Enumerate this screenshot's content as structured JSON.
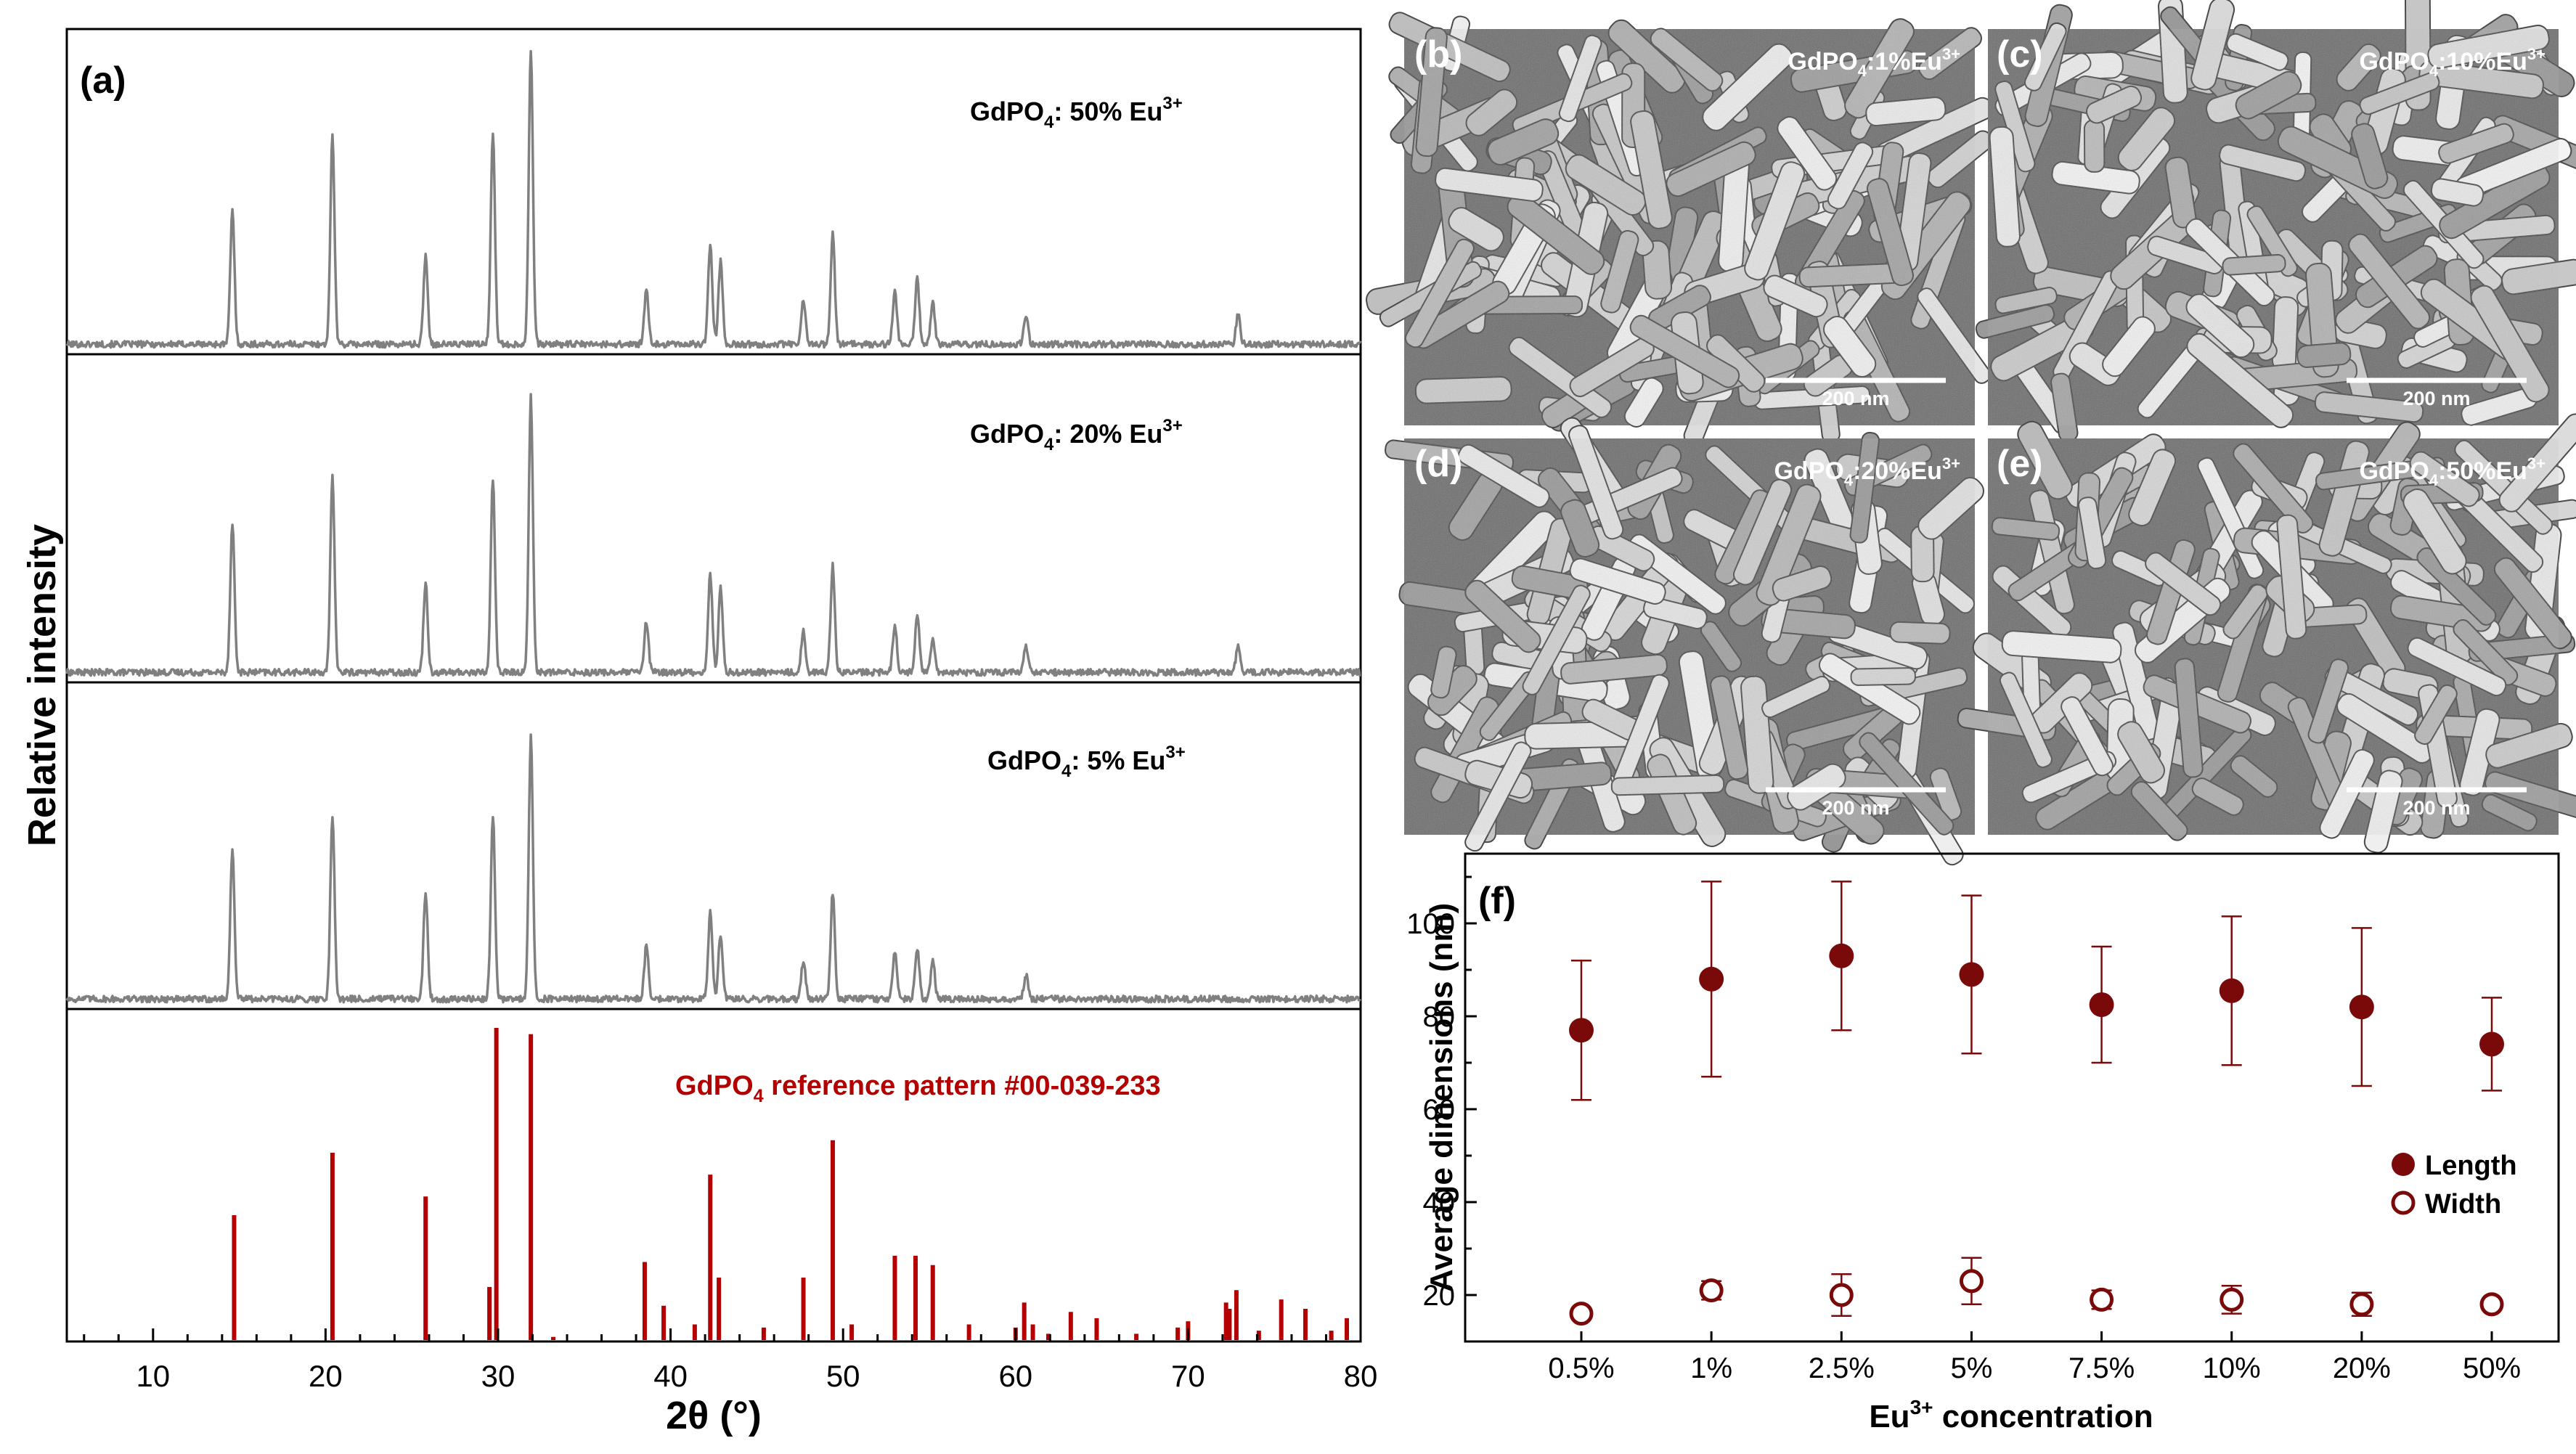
{
  "panels": {
    "a": "(a)",
    "b": "(b)",
    "c": "(c)",
    "d": "(d)",
    "e": "(e)",
    "f": "(f)"
  },
  "sem_labels": [
    {
      "main": "GdPO",
      "sub": "4",
      "rest": ":1%Eu",
      "sup": "3+"
    },
    {
      "main": "GdPO",
      "sub": "4",
      "rest": ":10%Eu",
      "sup": "3+"
    },
    {
      "main": "GdPO",
      "sub": "4",
      "rest": ":20%Eu",
      "sup": "3+"
    },
    {
      "main": "GdPO",
      "sub": "4",
      "rest": ":50%Eu",
      "sup": "3+"
    }
  ],
  "scale_bar_text": "200 nm",
  "chart_data": [
    {
      "type": "line",
      "title": "",
      "xlabel": "2θ (°)",
      "ylabel": "Relative intensity",
      "xlim": [
        5,
        80
      ],
      "xticks": [
        10,
        20,
        30,
        40,
        50,
        60,
        70,
        80
      ],
      "grid": false,
      "series": [
        {
          "name": "GdPO4: 50% Eu3+",
          "label_main": "GdPO",
          "label_sub": "4",
          "label_rest": ": 50% Eu",
          "label_sup": "3+",
          "peaks": [
            [
              14.6,
              0.45
            ],
            [
              20.4,
              0.7
            ],
            [
              25.8,
              0.3
            ],
            [
              29.7,
              0.72
            ],
            [
              31.9,
              1.0
            ],
            [
              38.6,
              0.18
            ],
            [
              42.3,
              0.34
            ],
            [
              42.9,
              0.28
            ],
            [
              47.7,
              0.15
            ],
            [
              49.4,
              0.38
            ],
            [
              53.0,
              0.18
            ],
            [
              54.3,
              0.22
            ],
            [
              55.2,
              0.14
            ],
            [
              60.6,
              0.1
            ],
            [
              72.9,
              0.1
            ]
          ],
          "color": "#808080"
        },
        {
          "name": "GdPO4: 20% Eu3+",
          "label_main": "GdPO",
          "label_sub": "4",
          "label_rest": ": 20% Eu",
          "label_sup": "3+",
          "peaks": [
            [
              14.6,
              0.5
            ],
            [
              20.4,
              0.65
            ],
            [
              25.8,
              0.3
            ],
            [
              29.7,
              0.65
            ],
            [
              31.9,
              0.92
            ],
            [
              38.6,
              0.17
            ],
            [
              42.3,
              0.33
            ],
            [
              42.9,
              0.28
            ],
            [
              47.7,
              0.14
            ],
            [
              49.4,
              0.36
            ],
            [
              53.0,
              0.16
            ],
            [
              54.3,
              0.2
            ],
            [
              55.2,
              0.12
            ],
            [
              60.6,
              0.09
            ],
            [
              72.9,
              0.09
            ]
          ],
          "color": "#808080"
        },
        {
          "name": "GdPO4: 5% Eu3+",
          "label_main": "GdPO",
          "label_sub": "4",
          "label_rest": ": 5% Eu",
          "label_sup": "3+",
          "peaks": [
            [
              14.6,
              0.5
            ],
            [
              20.4,
              0.62
            ],
            [
              25.8,
              0.36
            ],
            [
              29.7,
              0.62
            ],
            [
              31.9,
              0.88
            ],
            [
              38.6,
              0.18
            ],
            [
              42.3,
              0.29
            ],
            [
              42.9,
              0.22
            ],
            [
              47.7,
              0.13
            ],
            [
              49.4,
              0.36
            ],
            [
              53.0,
              0.16
            ],
            [
              54.3,
              0.17
            ],
            [
              55.2,
              0.13
            ],
            [
              60.6,
              0.08
            ]
          ],
          "color": "#808080"
        },
        {
          "name": "GdPO4 reference pattern #00-039-233",
          "label_main": "GdPO",
          "label_sub": "4",
          "label_rest": " reference pattern #00-039-233",
          "type": "bar",
          "x": [
            14.7,
            20.4,
            25.8,
            29.5,
            29.9,
            31.9,
            33.2,
            38.5,
            39.6,
            41.4,
            42.3,
            42.8,
            45.4,
            47.7,
            49.4,
            50.5,
            53.0,
            54.2,
            55.2,
            57.3,
            60.0,
            60.5,
            61.0,
            61.9,
            63.2,
            64.7,
            67.0,
            69.4,
            70.0,
            72.2,
            72.4,
            72.8,
            74.1,
            75.4,
            76.8,
            78.3,
            79.2
          ],
          "values": [
            0.4,
            0.6,
            0.46,
            0.17,
            1.0,
            0.98,
            0.01,
            0.25,
            0.11,
            0.05,
            0.53,
            0.2,
            0.04,
            0.2,
            0.64,
            0.05,
            0.27,
            0.27,
            0.24,
            0.05,
            0.04,
            0.12,
            0.05,
            0.02,
            0.09,
            0.07,
            0.02,
            0.04,
            0.06,
            0.12,
            0.1,
            0.16,
            0.03,
            0.13,
            0.1,
            0.03,
            0.07
          ],
          "color": "#b30000"
        }
      ]
    },
    {
      "type": "scatter",
      "title": "",
      "xlabel_main": "Eu",
      "xlabel_sup": "3+",
      "xlabel_rest": " concentration",
      "ylabel": "Average dimensions (nm)",
      "categories": [
        "0.5%",
        "1%",
        "2.5%",
        "5%",
        "7.5%",
        "10%",
        "20%",
        "50%"
      ],
      "ylim": [
        10,
        115
      ],
      "yticks": [
        20,
        40,
        60,
        80,
        100
      ],
      "legend_position": "right",
      "grid": false,
      "series": [
        {
          "name": "Length",
          "values": [
            77,
            88,
            93,
            89,
            82.5,
            85.5,
            82,
            74
          ],
          "errors": [
            15,
            21,
            16,
            17,
            12.5,
            16,
            17,
            10
          ],
          "marker": "filled",
          "color": "#7a0a0a"
        },
        {
          "name": "Width",
          "values": [
            16,
            21,
            20,
            23,
            19,
            19,
            18,
            18
          ],
          "errors": [
            1,
            2,
            4.5,
            5,
            2,
            3,
            2.5,
            1
          ],
          "marker": "open",
          "color": "#7a0a0a"
        }
      ]
    }
  ]
}
